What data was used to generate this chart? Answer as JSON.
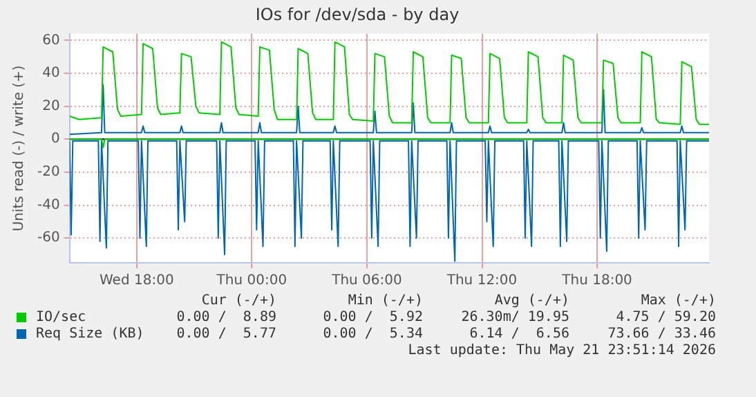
{
  "chart_data": {
    "type": "line",
    "title": "IOs for /dev/sda - by day",
    "ylabel": "Units read (-) / write (+)",
    "xlim": [
      "2026-05-20T14:30",
      "2026-05-21T23:50"
    ],
    "xticks": [
      {
        "value": "2026-05-20T18:00",
        "label": "Wed 18:00"
      },
      {
        "value": "2026-05-21T00:00",
        "label": "Thu 00:00"
      },
      {
        "value": "2026-05-21T06:00",
        "label": "Thu 06:00"
      },
      {
        "value": "2026-05-21T12:00",
        "label": "Thu 12:00"
      },
      {
        "value": "2026-05-21T18:00",
        "label": "Thu 18:00"
      }
    ],
    "ylim": [
      -75,
      64
    ],
    "yticks": [
      -60,
      -40,
      -20,
      0,
      20,
      40,
      60
    ],
    "grid": true,
    "legend": "bottom",
    "ref_lines": [
      {
        "axis": "y",
        "value": 0,
        "color": "#000000"
      }
    ],
    "annotations": [
      "Cur (-/+)",
      "Min (-/+)",
      "Avg (-/+)",
      "Max (-/+)",
      "0.00 /  8.89",
      "0.00 /  5.92",
      "26.30m/ 19.95",
      "4.75 / 59.20",
      "0.00 /  5.77",
      "0.00 /  5.34",
      "6.14 /  6.56",
      "73.66 / 33.46",
      "Last update: Thu May 21 23:51:14 2026"
    ],
    "series": [
      {
        "name": "IO/sec",
        "color": "#00cc00",
        "x": [
          "2026-05-20T14:30",
          "2026-05-20T15:00",
          "2026-05-20T16:10",
          "2026-05-20T16:15",
          "2026-05-20T16:45",
          "2026-05-20T17:00",
          "2026-05-20T17:10",
          "2026-05-20T18:15",
          "2026-05-20T18:20",
          "2026-05-20T18:50",
          "2026-05-20T19:05",
          "2026-05-20T19:15",
          "2026-05-20T20:15",
          "2026-05-20T20:20",
          "2026-05-20T20:50",
          "2026-05-20T21:05",
          "2026-05-20T21:15",
          "2026-05-20T22:20",
          "2026-05-20T22:25",
          "2026-05-20T22:55",
          "2026-05-20T23:10",
          "2026-05-20T23:20",
          "2026-05-21T00:20",
          "2026-05-21T00:25",
          "2026-05-21T00:55",
          "2026-05-21T01:10",
          "2026-05-21T01:20",
          "2026-05-21T02:20",
          "2026-05-21T02:25",
          "2026-05-21T02:55",
          "2026-05-21T03:10",
          "2026-05-21T03:20",
          "2026-05-21T04:15",
          "2026-05-21T04:20",
          "2026-05-21T04:50",
          "2026-05-21T05:05",
          "2026-05-21T05:15",
          "2026-05-21T06:20",
          "2026-05-21T06:25",
          "2026-05-21T06:55",
          "2026-05-21T07:10",
          "2026-05-21T07:20",
          "2026-05-21T08:20",
          "2026-05-21T08:25",
          "2026-05-21T08:55",
          "2026-05-21T09:10",
          "2026-05-21T09:20",
          "2026-05-21T10:20",
          "2026-05-21T10:25",
          "2026-05-21T10:55",
          "2026-05-21T11:10",
          "2026-05-21T11:20",
          "2026-05-21T12:20",
          "2026-05-21T12:25",
          "2026-05-21T12:55",
          "2026-05-21T13:10",
          "2026-05-21T13:20",
          "2026-05-21T14:20",
          "2026-05-21T14:25",
          "2026-05-21T14:55",
          "2026-05-21T15:10",
          "2026-05-21T15:20",
          "2026-05-21T16:10",
          "2026-05-21T16:15",
          "2026-05-21T16:45",
          "2026-05-21T17:00",
          "2026-05-21T17:10",
          "2026-05-21T18:15",
          "2026-05-21T18:20",
          "2026-05-21T18:50",
          "2026-05-21T19:05",
          "2026-05-21T19:15",
          "2026-05-21T20:15",
          "2026-05-21T20:20",
          "2026-05-21T20:50",
          "2026-05-21T21:05",
          "2026-05-21T21:15",
          "2026-05-21T22:20",
          "2026-05-21T22:25",
          "2026-05-21T22:55",
          "2026-05-21T23:10",
          "2026-05-21T23:20",
          "2026-05-21T23:50"
        ],
        "values": [
          14,
          12,
          13,
          56,
          53,
          18,
          14,
          15,
          58,
          55,
          19,
          15,
          16,
          52,
          50,
          20,
          16,
          15,
          59,
          56,
          19,
          15,
          14,
          56,
          54,
          18,
          12,
          12,
          55,
          52,
          16,
          12,
          12,
          59,
          56,
          15,
          12,
          11,
          52,
          50,
          14,
          10,
          10,
          53,
          50,
          13,
          10,
          10,
          51,
          49,
          13,
          10,
          10,
          52,
          49,
          13,
          10,
          10,
          53,
          50,
          13,
          10,
          10,
          51,
          48,
          13,
          10,
          10,
          48,
          46,
          13,
          10,
          10,
          53,
          50,
          12,
          10,
          9,
          47,
          44,
          12,
          9,
          9
        ]
      },
      {
        "color": "#00cc00",
        "x": [
          "2026-05-20T14:30",
          "2026-05-20T16:10",
          "2026-05-20T16:15",
          "2026-05-20T16:20",
          "2026-05-21T23:50"
        ],
        "values": [
          0,
          0,
          -5,
          0,
          0
        ]
      },
      {
        "name": "Req Size (KB)",
        "color": "#0066b3",
        "x": [
          "2026-05-20T14:30",
          "2026-05-20T16:10",
          "2026-05-20T16:15",
          "2026-05-20T16:20",
          "2026-05-20T18:15",
          "2026-05-20T18:20",
          "2026-05-20T18:25",
          "2026-05-20T20:15",
          "2026-05-20T20:20",
          "2026-05-20T20:25",
          "2026-05-20T22:20",
          "2026-05-20T22:25",
          "2026-05-20T22:30",
          "2026-05-21T00:20",
          "2026-05-21T00:25",
          "2026-05-21T00:30",
          "2026-05-21T02:20",
          "2026-05-21T02:25",
          "2026-05-21T02:30",
          "2026-05-21T04:15",
          "2026-05-21T04:20",
          "2026-05-21T04:25",
          "2026-05-21T06:20",
          "2026-05-21T06:25",
          "2026-05-21T06:30",
          "2026-05-21T08:20",
          "2026-05-21T08:25",
          "2026-05-21T08:30",
          "2026-05-21T10:20",
          "2026-05-21T10:25",
          "2026-05-21T10:30",
          "2026-05-21T12:20",
          "2026-05-21T12:25",
          "2026-05-21T12:30",
          "2026-05-21T14:20",
          "2026-05-21T14:25",
          "2026-05-21T14:30",
          "2026-05-21T16:10",
          "2026-05-21T16:15",
          "2026-05-21T16:20",
          "2026-05-21T18:15",
          "2026-05-21T18:20",
          "2026-05-21T18:25",
          "2026-05-21T20:15",
          "2026-05-21T20:20",
          "2026-05-21T20:25",
          "2026-05-21T22:20",
          "2026-05-21T22:25",
          "2026-05-21T22:30",
          "2026-05-21T23:50"
        ],
        "values": [
          3,
          4,
          33,
          4,
          4,
          8,
          4,
          4,
          8,
          4,
          4,
          10,
          4,
          4,
          10,
          4,
          4,
          20,
          4,
          4,
          8,
          4,
          4,
          17,
          4,
          4,
          22,
          4,
          4,
          10,
          4,
          4,
          8,
          4,
          4,
          6,
          4,
          4,
          10,
          4,
          4,
          30,
          4,
          4,
          7,
          4,
          4,
          8,
          4,
          4
        ]
      },
      {
        "color": "#0066b3",
        "x": [
          "2026-05-20T14:30",
          "2026-05-20T14:35",
          "2026-05-20T14:40",
          "2026-05-20T16:00",
          "2026-05-20T16:05",
          "2026-05-20T16:10",
          "2026-05-20T16:25",
          "2026-05-20T16:30",
          "2026-05-20T18:05",
          "2026-05-20T18:10",
          "2026-05-20T18:15",
          "2026-05-20T18:30",
          "2026-05-20T18:35",
          "2026-05-20T20:05",
          "2026-05-20T20:10",
          "2026-05-20T20:15",
          "2026-05-20T20:30",
          "2026-05-20T20:35",
          "2026-05-20T22:10",
          "2026-05-20T22:15",
          "2026-05-20T22:20",
          "2026-05-20T22:35",
          "2026-05-20T22:40",
          "2026-05-21T00:10",
          "2026-05-21T00:15",
          "2026-05-21T00:20",
          "2026-05-21T00:35",
          "2026-05-21T00:40",
          "2026-05-21T02:10",
          "2026-05-21T02:15",
          "2026-05-21T02:20",
          "2026-05-21T02:35",
          "2026-05-21T02:40",
          "2026-05-21T04:05",
          "2026-05-21T04:10",
          "2026-05-21T04:15",
          "2026-05-21T04:30",
          "2026-05-21T04:35",
          "2026-05-21T06:10",
          "2026-05-21T06:15",
          "2026-05-21T06:20",
          "2026-05-21T06:35",
          "2026-05-21T06:40",
          "2026-05-21T08:10",
          "2026-05-21T08:15",
          "2026-05-21T08:20",
          "2026-05-21T08:35",
          "2026-05-21T08:40",
          "2026-05-21T10:10",
          "2026-05-21T10:15",
          "2026-05-21T10:20",
          "2026-05-21T10:35",
          "2026-05-21T10:40",
          "2026-05-21T12:10",
          "2026-05-21T12:15",
          "2026-05-21T12:20",
          "2026-05-21T12:35",
          "2026-05-21T12:40",
          "2026-05-21T14:10",
          "2026-05-21T14:15",
          "2026-05-21T14:20",
          "2026-05-21T14:35",
          "2026-05-21T14:40",
          "2026-05-21T16:00",
          "2026-05-21T16:05",
          "2026-05-21T16:10",
          "2026-05-21T16:25",
          "2026-05-21T16:30",
          "2026-05-21T18:05",
          "2026-05-21T18:10",
          "2026-05-21T18:15",
          "2026-05-21T18:30",
          "2026-05-21T18:35",
          "2026-05-21T20:05",
          "2026-05-21T20:10",
          "2026-05-21T20:15",
          "2026-05-21T20:30",
          "2026-05-21T20:35",
          "2026-05-21T22:10",
          "2026-05-21T22:15",
          "2026-05-21T22:20",
          "2026-05-21T22:35",
          "2026-05-21T22:40",
          "2026-05-21T23:50"
        ],
        "values": [
          -1,
          -58,
          -1,
          -1,
          -62,
          -1,
          -66,
          -1,
          -1,
          -60,
          -1,
          -65,
          -1,
          -1,
          -55,
          -1,
          -50,
          -1,
          -1,
          -60,
          -1,
          -70,
          -1,
          -1,
          -55,
          -1,
          -65,
          -1,
          -1,
          -65,
          -1,
          -60,
          -1,
          -1,
          -55,
          -1,
          -65,
          -1,
          -1,
          -60,
          -1,
          -65,
          -1,
          -1,
          -65,
          -1,
          -60,
          -1,
          -1,
          -60,
          -1,
          -74,
          -1,
          -1,
          -50,
          -1,
          -65,
          -1,
          -1,
          -60,
          -1,
          -65,
          -1,
          -1,
          -65,
          -1,
          -62,
          -1,
          -1,
          -60,
          -1,
          -68,
          -1,
          -1,
          -60,
          -1,
          -55,
          -1,
          -1,
          -65,
          -1,
          -55,
          -1,
          -1
        ]
      }
    ]
  }
}
